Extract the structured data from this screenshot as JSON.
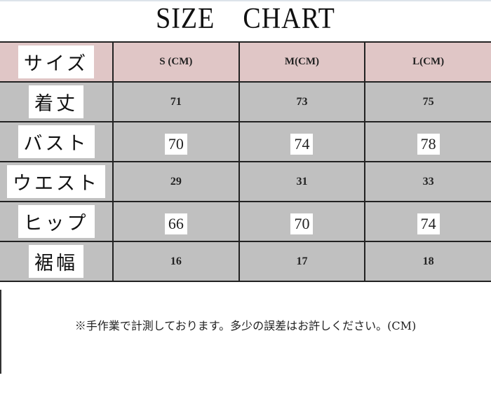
{
  "title": {
    "word1": "SIZE",
    "word2": "CHART"
  },
  "header": {
    "label": "サイズ",
    "columns": [
      "S (CM)",
      "M(CM)",
      "L(CM)"
    ]
  },
  "rows": [
    {
      "label": "着丈",
      "values": [
        "71",
        "73",
        "75"
      ],
      "boxed": false
    },
    {
      "label": "バスト",
      "values": [
        "70",
        "74",
        "78"
      ],
      "boxed": true
    },
    {
      "label": "ウエスト",
      "values": [
        "29",
        "31",
        "33"
      ],
      "boxed": false
    },
    {
      "label": "ヒップ",
      "values": [
        "66",
        "70",
        "74"
      ],
      "boxed": true
    },
    {
      "label": "裾幅",
      "values": [
        "16",
        "17",
        "18"
      ],
      "boxed": false
    }
  ],
  "note": "※手作業で計測しております。多少の誤差はお許しください。(CM)",
  "colors": {
    "header_bg": "#e0c6c6",
    "body_bg": "#c0c0c0"
  }
}
